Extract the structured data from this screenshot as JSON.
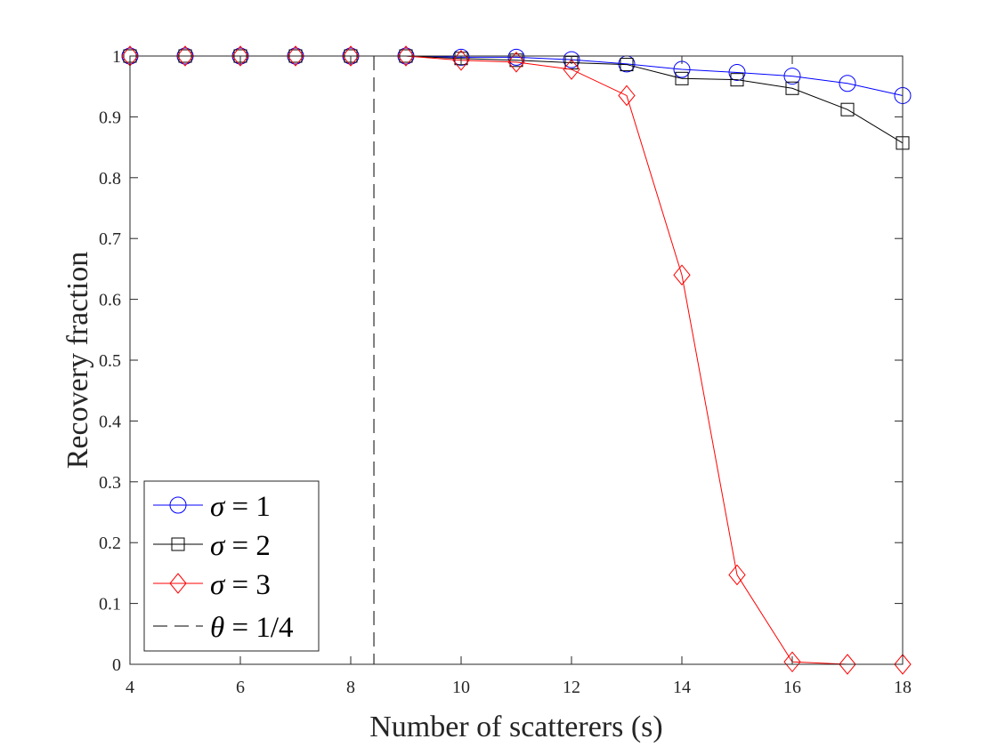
{
  "chart_data": {
    "type": "line",
    "title": "",
    "xlabel": "Number of scatterers (s)",
    "ylabel": "Recovery fraction",
    "xlim": [
      4,
      18
    ],
    "ylim": [
      0,
      1
    ],
    "xticks": [
      "4",
      "6",
      "8",
      "10",
      "12",
      "14",
      "16",
      "18"
    ],
    "yticks": [
      "0",
      "0.1",
      "0.2",
      "0.3",
      "0.4",
      "0.5",
      "0.6",
      "0.7",
      "0.8",
      "0.9",
      "1"
    ],
    "grid": false,
    "legend_position": "bottom-left",
    "x": [
      4,
      5,
      6,
      7,
      8,
      9,
      10,
      11,
      12,
      13,
      14,
      15,
      16,
      17,
      18
    ],
    "series": [
      {
        "name": "σ = 1",
        "legend_symbol": "σ",
        "legend_value": "= 1",
        "color": "#0000ff",
        "marker": "circle",
        "values": [
          1,
          1,
          1,
          1,
          1,
          1,
          0.998,
          0.998,
          0.994,
          0.987,
          0.978,
          0.973,
          0.967,
          0.955,
          0.935
        ]
      },
      {
        "name": "σ = 2",
        "legend_symbol": "σ",
        "legend_value": "= 2",
        "color": "#000000",
        "marker": "square",
        "values": [
          1,
          1,
          1,
          1,
          1,
          1,
          0.996,
          0.993,
          0.989,
          0.986,
          0.963,
          0.961,
          0.947,
          0.912,
          0.857
        ]
      },
      {
        "name": "σ = 3",
        "legend_symbol": "σ",
        "legend_value": "= 3",
        "color": "#ff0000",
        "marker": "diamond",
        "values": [
          1,
          1,
          1,
          1,
          1,
          1,
          0.993,
          0.99,
          0.978,
          0.935,
          0.64,
          0.147,
          0.004,
          0,
          0
        ]
      }
    ],
    "reference_line": {
      "name": "θ = 1/4",
      "legend_symbol": "θ",
      "legend_value": "= 1/4",
      "orientation": "vertical",
      "x": 8.42,
      "color": "#000000",
      "style": "dashed"
    }
  }
}
